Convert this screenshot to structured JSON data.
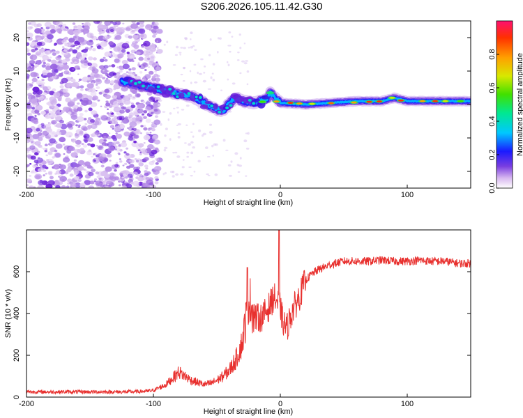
{
  "title": "S206.2026.105.11.42.G30",
  "colors": {
    "series": "#e8302e",
    "frame": "#000000",
    "background": "#ffffff"
  },
  "chart_data": [
    {
      "type": "heatmap",
      "title": "S206.2026.105.11.42.G30",
      "xlabel": "Height of straight line (km)",
      "ylabel": "Frequency (Hz)",
      "xlim": [
        -200,
        150
      ],
      "ylim": [
        -25,
        25
      ],
      "xticks": [
        -200,
        -100,
        0,
        100
      ],
      "yticks": [
        -20,
        -10,
        0,
        10,
        20
      ],
      "colorbar": {
        "label": "Normalized spectral amplitude",
        "range": [
          0,
          1
        ],
        "ticks": [
          0.0,
          0.2,
          0.4,
          0.6,
          0.8
        ],
        "colormap": "rainbow"
      },
      "ridge": {
        "x": [
          -160,
          -140,
          -120,
          -100,
          -90,
          -80,
          -70,
          -60,
          -50,
          -45,
          -40,
          -35,
          -30,
          -20,
          -10,
          -8,
          0,
          20,
          40,
          60,
          80,
          90,
          100,
          120,
          150
        ],
        "y": [
          10,
          8,
          6.5,
          5,
          4,
          3.2,
          2.5,
          0.5,
          -1.5,
          -2,
          0.5,
          2,
          1,
          0.5,
          1.8,
          3.5,
          0.5,
          0,
          0.5,
          1,
          1,
          2,
          1,
          1,
          1
        ]
      },
      "noise_region": {
        "x_from": -200,
        "x_to": -100
      }
    },
    {
      "type": "line",
      "xlabel": "Height of straight line (km)",
      "ylabel": "SNR (10 * v/v)",
      "xlim": [
        -200,
        150
      ],
      "ylim": [
        0,
        800
      ],
      "xticks": [
        -200,
        -100,
        0,
        100
      ],
      "yticks": [
        0,
        200,
        400,
        600
      ],
      "series": [
        {
          "name": "SNR",
          "x": [
            -200,
            -180,
            -160,
            -140,
            -120,
            -105,
            -100,
            -90,
            -85,
            -80,
            -75,
            -70,
            -65,
            -60,
            -55,
            -50,
            -45,
            -40,
            -35,
            -30,
            -27,
            -25,
            -22,
            -20,
            -15,
            -10,
            -5,
            -2,
            0,
            2,
            5,
            10,
            15,
            20,
            25,
            30,
            40,
            50,
            60,
            70,
            80,
            90,
            100,
            110,
            120,
            130,
            140,
            150
          ],
          "y": [
            25,
            25,
            25,
            25,
            25,
            28,
            32,
            60,
            90,
            120,
            100,
            80,
            70,
            60,
            65,
            80,
            100,
            130,
            180,
            260,
            380,
            480,
            420,
            380,
            380,
            420,
            480,
            450,
            430,
            360,
            330,
            420,
            480,
            560,
            590,
            610,
            635,
            650,
            650,
            650,
            655,
            650,
            650,
            655,
            650,
            650,
            640,
            640
          ]
        }
      ],
      "spikes": [
        {
          "x": -1,
          "y": 800
        },
        {
          "x": -26,
          "y": 620
        }
      ]
    }
  ]
}
